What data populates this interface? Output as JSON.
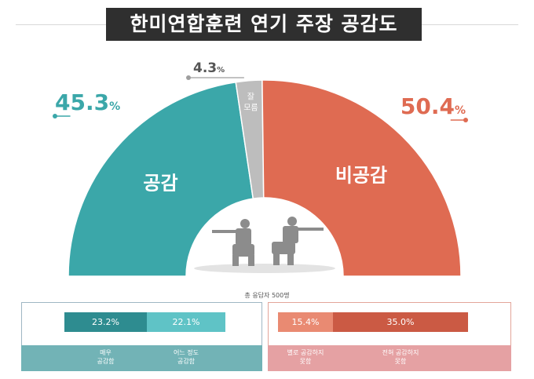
{
  "title": "한미연합훈련 연기 주장 공감도",
  "sample_note": "총 응답자 500명",
  "colors": {
    "agree": "#3ba7a9",
    "dont_know": "#bdbdbd",
    "disagree": "#df6b52"
  },
  "chart_data": {
    "type": "pie",
    "variant": "semicircle-donut",
    "unit": "%",
    "slices": [
      {
        "label": "공감",
        "value": 45.3,
        "value_text": "45.3",
        "color": "#3ba7a9"
      },
      {
        "label": "잘 모름",
        "value": 4.3,
        "value_text": "4.3",
        "color": "#bdbdbd"
      },
      {
        "label": "비공감",
        "value": 50.4,
        "value_text": "50.4",
        "color": "#df6b52"
      }
    ],
    "breakdown": {
      "agree": [
        {
          "label": "매우\n공감함",
          "value": 23.2,
          "value_text": "23.2%",
          "color": "#2e8c90"
        },
        {
          "label": "어느 정도\n공감함",
          "value": 22.1,
          "value_text": "22.1%",
          "color": "#5fc3c6"
        }
      ],
      "disagree": [
        {
          "label": "별로 공감하지\n못함",
          "value": 15.4,
          "value_text": "15.4%",
          "color": "#e98a72"
        },
        {
          "label": "전혀 공감하지\n못함",
          "value": 35.0,
          "value_text": "35.0%",
          "color": "#cb5a44"
        }
      ]
    }
  }
}
